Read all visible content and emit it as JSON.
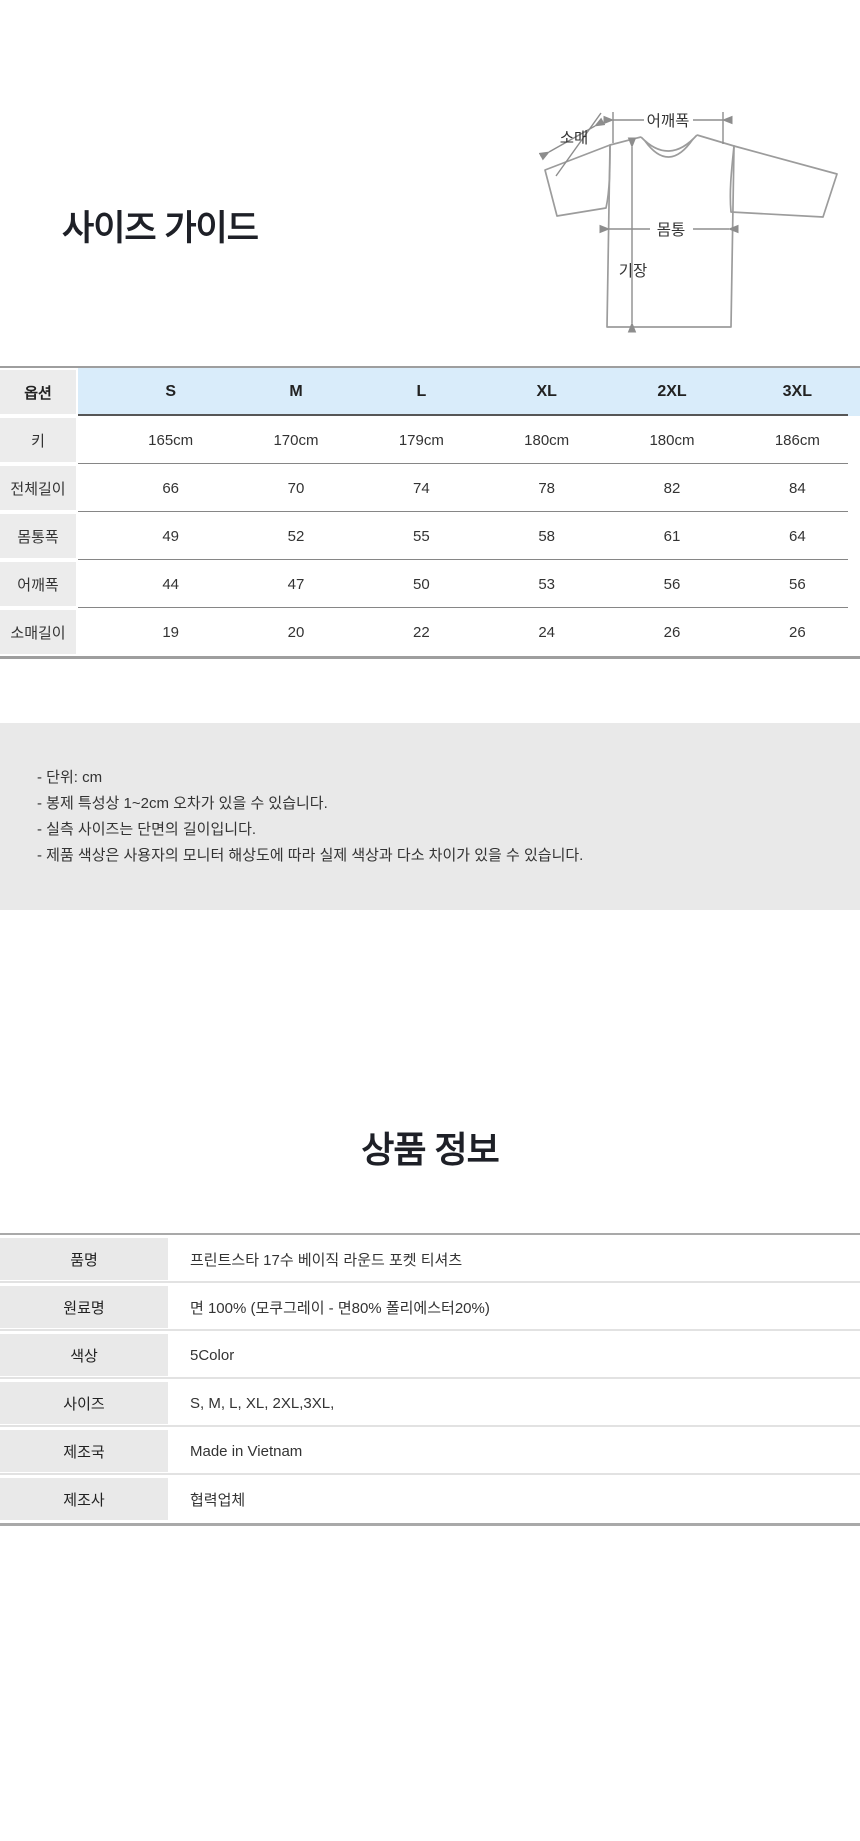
{
  "size_guide": {
    "title": "사이즈 가이드",
    "diagram_labels": {
      "sleeve": "소매",
      "shoulder": "어깨폭",
      "body": "몸통",
      "length": "기장"
    },
    "table": {
      "option_header": "옵션",
      "size_headers": [
        "S",
        "M",
        "L",
        "XL",
        "2XL",
        "3XL"
      ],
      "rows": [
        {
          "label": "키",
          "values": [
            "165cm",
            "170cm",
            "179cm",
            "180cm",
            "180cm",
            "186cm"
          ]
        },
        {
          "label": "전체길이",
          "values": [
            "66",
            "70",
            "74",
            "78",
            "82",
            "84"
          ]
        },
        {
          "label": "몸통폭",
          "values": [
            "49",
            "52",
            "55",
            "58",
            "61",
            "64"
          ]
        },
        {
          "label": "어깨폭",
          "values": [
            "44",
            "47",
            "50",
            "53",
            "56",
            "56"
          ]
        },
        {
          "label": "소매길이",
          "values": [
            "19",
            "20",
            "22",
            "24",
            "26",
            "26"
          ]
        }
      ]
    },
    "notes": [
      "- 단위: cm",
      "- 봉제 특성상 1~2cm 오차가 있을 수 있습니다.",
      "- 실측 사이즈는 단면의 길이입니다.",
      "- 제품 색상은 사용자의 모니터 해상도에 따라 실제 색상과 다소 차이가 있을 수 있습니다."
    ]
  },
  "product_info": {
    "title": "상품 정보",
    "rows": [
      {
        "label": "품명",
        "value": "프린트스타 17수 베이직 라운드 포켓  티셔츠"
      },
      {
        "label": "원료명",
        "value": "면 100% (모쿠그레이 - 면80% 폴리에스터20%)"
      },
      {
        "label": "색상",
        "value": "5Color"
      },
      {
        "label": "사이즈",
        "value": "S, M, L, XL, 2XL,3XL,"
      },
      {
        "label": "제조국",
        "value": "Made in Vietnam"
      },
      {
        "label": "제조사",
        "value": "협력업체"
      }
    ]
  },
  "colors": {
    "header_blue": "#d9ecfa",
    "label_gray": "#ececec",
    "notes_bg": "#e9e9e9",
    "info_label_gray": "#e9e9e9",
    "table_border": "#9e9e9e",
    "row_line": "#868686",
    "header_line": "#565656",
    "info_row_line": "#e2e2e2",
    "diagram_stroke": "#9c9c9c",
    "title_text": "#1e2027",
    "body_text": "#333333"
  }
}
